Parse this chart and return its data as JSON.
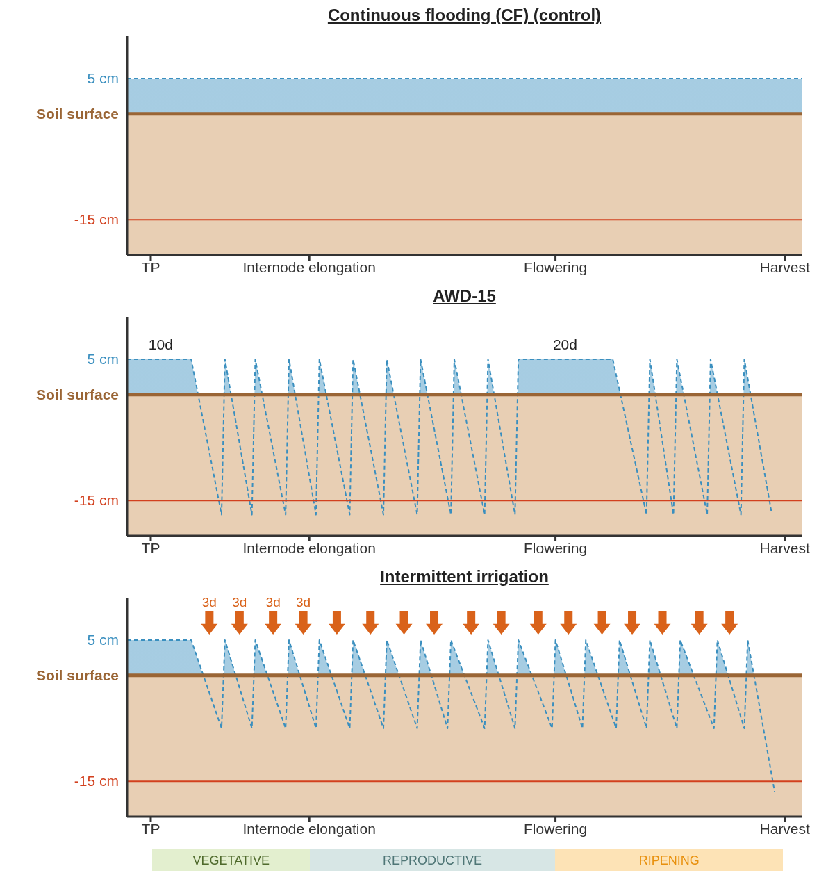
{
  "chart_data": [
    {
      "type": "area",
      "title": "Continuous flooding (CF) (control)",
      "line_style": "dashed",
      "categories": [
        null,
        null,
        null,
        null,
        null,
        null,
        null,
        "TP",
        null,
        null,
        null,
        null,
        null,
        null,
        null,
        null,
        null,
        null,
        null,
        null,
        null,
        null,
        null,
        null,
        null,
        null,
        null,
        null,
        null,
        null,
        null,
        null,
        null,
        null,
        null,
        null,
        null,
        null,
        null,
        null,
        null,
        null,
        null,
        null,
        null,
        null,
        null,
        null,
        null,
        null,
        null,
        null,
        null,
        null,
        "Internode elongation",
        null,
        null,
        null,
        null,
        null,
        null,
        null,
        null,
        null,
        null,
        null,
        null,
        null,
        null,
        null,
        null,
        null,
        null,
        null,
        null,
        null,
        null,
        null,
        null,
        null,
        null,
        null,
        null,
        null,
        null,
        null,
        null,
        null,
        null,
        null,
        null,
        null,
        null,
        null,
        null,
        null,
        null,
        null,
        null,
        null,
        null,
        null,
        null,
        null,
        null,
        null,
        null,
        null,
        null,
        null,
        null,
        null,
        null,
        null,
        null,
        null,
        null,
        null,
        null,
        null,
        null,
        null,
        null,
        null,
        null,
        null,
        null,
        "Flowering",
        null,
        null,
        null,
        null,
        null,
        null,
        null,
        null,
        null,
        null,
        null,
        null,
        null,
        null,
        null,
        null,
        null,
        null,
        null,
        null,
        null,
        null,
        null,
        null,
        null,
        null,
        null,
        null,
        null,
        null,
        null,
        null,
        null,
        null,
        null,
        null,
        null,
        null,
        null,
        null,
        null,
        null,
        null,
        null,
        null,
        null,
        null,
        null,
        null,
        null,
        null,
        null,
        null,
        null,
        null,
        null,
        null,
        null,
        null,
        null,
        null,
        null,
        null,
        null,
        null,
        null,
        null,
        "Harvest",
        null,
        null,
        null,
        null,
        null
      ],
      "series": [
        {
          "color": "#3a8fbf",
          "values": [
            5,
            null,
            null,
            null,
            null,
            null,
            null,
            null,
            null,
            null,
            null,
            null,
            null,
            null,
            null,
            null,
            null,
            null,
            null,
            null,
            null,
            null,
            null,
            null,
            null,
            null,
            null,
            null,
            null,
            null,
            null,
            null,
            null,
            null,
            null,
            null,
            null,
            null,
            null,
            null,
            null,
            null,
            null,
            null,
            null,
            null,
            null,
            null,
            null,
            null,
            null,
            null,
            null,
            null,
            null,
            null,
            null,
            null,
            null,
            null,
            null,
            null,
            null,
            null,
            null,
            null,
            null,
            null,
            null,
            null,
            null,
            null,
            null,
            null,
            null,
            null,
            null,
            null,
            null,
            null,
            null,
            null,
            null,
            null,
            null,
            null,
            null,
            null,
            null,
            null,
            null,
            null,
            null,
            null,
            null,
            null,
            null,
            null,
            null,
            null,
            null,
            null,
            null,
            null,
            null,
            null,
            null,
            null,
            null,
            null,
            null,
            null,
            null,
            null,
            null,
            null,
            null,
            null,
            null,
            null,
            null,
            null,
            null,
            null,
            null,
            null,
            null,
            null,
            null,
            null,
            null,
            null,
            null,
            null,
            null,
            null,
            null,
            null,
            null,
            null,
            null,
            null,
            null,
            null,
            null,
            null,
            null,
            null,
            null,
            null,
            null,
            null,
            null,
            null,
            null,
            null,
            null,
            null,
            null,
            null,
            null,
            null,
            null,
            null,
            null,
            null,
            null,
            null,
            null,
            null,
            null,
            null,
            null,
            null,
            null,
            null,
            null,
            null,
            null,
            null,
            null,
            null,
            null,
            null,
            null,
            null,
            null,
            null,
            null,
            null,
            null,
            null,
            null,
            null,
            null,
            null,
            null,
            null,
            null,
            null,
            5
          ]
        }
      ],
      "ylim": [
        -20,
        11
      ],
      "yticks": [
        {
          "value": 5,
          "label": "5 cm"
        },
        {
          "value": 0,
          "label": "Soil surface"
        },
        {
          "value": -15,
          "label": "-15 cm"
        }
      ],
      "ref_lines": [
        {
          "axis": "y",
          "value": 0,
          "color": "#9a6535"
        },
        {
          "axis": "y",
          "value": -15,
          "color": "#d2401e"
        }
      ],
      "bands": [
        {
          "axis": "y",
          "from": -20,
          "to": 0,
          "color": "#e8cfb4"
        }
      ]
    },
    {
      "type": "area",
      "title": "AWD-15",
      "line_style": "dashed",
      "categories": [
        null,
        null,
        null,
        null,
        null,
        null,
        null,
        "TP",
        null,
        null,
        null,
        null,
        null,
        null,
        null,
        null,
        null,
        null,
        null,
        null,
        null,
        null,
        null,
        null,
        null,
        null,
        null,
        null,
        null,
        null,
        null,
        null,
        null,
        null,
        null,
        null,
        null,
        null,
        null,
        null,
        null,
        null,
        null,
        null,
        null,
        null,
        null,
        null,
        null,
        null,
        null,
        null,
        null,
        null,
        "Internode elongation",
        null,
        null,
        null,
        null,
        null,
        null,
        null,
        null,
        null,
        null,
        null,
        null,
        null,
        null,
        null,
        null,
        null,
        null,
        null,
        null,
        null,
        null,
        null,
        null,
        null,
        null,
        null,
        null,
        null,
        null,
        null,
        null,
        null,
        null,
        null,
        null,
        null,
        null,
        null,
        null,
        null,
        null,
        null,
        null,
        null,
        null,
        null,
        null,
        null,
        null,
        null,
        null,
        null,
        null,
        null,
        null,
        null,
        null,
        null,
        null,
        null,
        null,
        null,
        null,
        null,
        null,
        null,
        null,
        null,
        null,
        null,
        null,
        "Flowering",
        null,
        null,
        null,
        null,
        null,
        null,
        null,
        null,
        null,
        null,
        null,
        null,
        null,
        null,
        null,
        null,
        null,
        null,
        null,
        null,
        null,
        null,
        null,
        null,
        null,
        null,
        null,
        null,
        null,
        null,
        null,
        null,
        null,
        null,
        null,
        null,
        null,
        null,
        null,
        null,
        null,
        null,
        null,
        null,
        null,
        null,
        null,
        null,
        null,
        null,
        null,
        null,
        null,
        null,
        null,
        null,
        null,
        null,
        null,
        null,
        null,
        null,
        null,
        null,
        null,
        null,
        null,
        "Harvest",
        null,
        null,
        null,
        null,
        null
      ],
      "series": [
        {
          "color": "#3a8fbf",
          "values": [
            5,
            null,
            null,
            null,
            null,
            null,
            null,
            null,
            null,
            null,
            null,
            null,
            null,
            null,
            null,
            null,
            null,
            null,
            null,
            5,
            null,
            null,
            null,
            null,
            null,
            null,
            null,
            null,
            -17,
            5,
            null,
            null,
            null,
            null,
            null,
            null,
            null,
            -17,
            5,
            null,
            null,
            null,
            null,
            null,
            null,
            null,
            null,
            -17,
            5,
            null,
            null,
            null,
            null,
            null,
            null,
            null,
            -17,
            5,
            null,
            null,
            null,
            null,
            null,
            null,
            null,
            null,
            -17,
            5,
            null,
            null,
            null,
            null,
            null,
            null,
            null,
            null,
            -17,
            5,
            null,
            null,
            null,
            null,
            null,
            null,
            null,
            null,
            -17,
            5,
            null,
            null,
            null,
            null,
            null,
            null,
            null,
            null,
            -17,
            5,
            null,
            null,
            null,
            null,
            null,
            null,
            null,
            null,
            -17,
            5,
            null,
            null,
            null,
            null,
            null,
            null,
            null,
            -17,
            5,
            null,
            null,
            null,
            null,
            null,
            null,
            null,
            null,
            null,
            null,
            null,
            null,
            null,
            null,
            null,
            null,
            null,
            null,
            null,
            null,
            null,
            null,
            null,
            null,
            null,
            null,
            null,
            5,
            null,
            null,
            null,
            null,
            null,
            null,
            null,
            null,
            null,
            -17,
            5,
            null,
            null,
            null,
            null,
            null,
            null,
            -17,
            5,
            null,
            null,
            null,
            null,
            null,
            null,
            null,
            null,
            -17,
            5,
            null,
            null,
            null,
            null,
            null,
            null,
            null,
            null,
            -17,
            5,
            null,
            null,
            null,
            null,
            null,
            null,
            null,
            -16.5,
            null,
            null,
            null,
            null,
            null,
            null,
            null,
            null,
            null
          ]
        }
      ],
      "ylim": [
        -20,
        11
      ],
      "yticks": [
        {
          "value": 5,
          "label": "5 cm"
        },
        {
          "value": 0,
          "label": "Soil surface"
        },
        {
          "value": -15,
          "label": "-15 cm"
        }
      ],
      "ref_lines": [
        {
          "axis": "y",
          "value": 0,
          "color": "#9a6535"
        },
        {
          "axis": "y",
          "value": -15,
          "color": "#d2401e"
        }
      ],
      "bands": [
        {
          "axis": "y",
          "from": -20,
          "to": 0,
          "color": "#e8cfb4"
        }
      ],
      "annotations": [
        "10d",
        "20d"
      ]
    },
    {
      "type": "area",
      "title": "Intermittent irrigation",
      "line_style": "dashed",
      "categories": [
        null,
        null,
        null,
        null,
        null,
        null,
        null,
        "TP",
        null,
        null,
        null,
        null,
        null,
        null,
        null,
        null,
        null,
        null,
        null,
        null,
        null,
        null,
        null,
        null,
        null,
        null,
        null,
        null,
        null,
        null,
        null,
        null,
        null,
        null,
        null,
        null,
        null,
        null,
        null,
        null,
        null,
        null,
        null,
        null,
        null,
        null,
        null,
        null,
        null,
        null,
        null,
        null,
        null,
        null,
        "Internode elongation",
        null,
        null,
        null,
        null,
        null,
        null,
        null,
        null,
        null,
        null,
        null,
        null,
        null,
        null,
        null,
        null,
        null,
        null,
        null,
        null,
        null,
        null,
        null,
        null,
        null,
        null,
        null,
        null,
        null,
        null,
        null,
        null,
        null,
        null,
        null,
        null,
        null,
        null,
        null,
        null,
        null,
        null,
        null,
        null,
        null,
        null,
        null,
        null,
        null,
        null,
        null,
        null,
        null,
        null,
        null,
        null,
        null,
        null,
        null,
        null,
        null,
        null,
        null,
        null,
        null,
        null,
        null,
        null,
        null,
        null,
        null,
        null,
        "Flowering",
        null,
        null,
        null,
        null,
        null,
        null,
        null,
        null,
        null,
        null,
        null,
        null,
        null,
        null,
        null,
        null,
        null,
        null,
        null,
        null,
        null,
        null,
        null,
        null,
        null,
        null,
        null,
        null,
        null,
        null,
        null,
        null,
        null,
        null,
        null,
        null,
        null,
        null,
        null,
        null,
        null,
        null,
        null,
        null,
        null,
        null,
        null,
        null,
        null,
        null,
        null,
        null,
        null,
        null,
        null,
        null,
        null,
        null,
        null,
        null,
        null,
        null,
        null,
        null,
        null,
        null,
        null,
        "Harvest",
        null,
        null,
        null,
        null,
        null
      ],
      "series": [
        {
          "color": "#3a8fbf",
          "values": [
            5,
            null,
            null,
            null,
            null,
            null,
            null,
            null,
            null,
            null,
            null,
            null,
            null,
            null,
            null,
            null,
            null,
            null,
            null,
            5,
            null,
            null,
            null,
            null,
            null,
            null,
            null,
            null,
            -7.5,
            5,
            null,
            null,
            null,
            null,
            null,
            null,
            null,
            -7.5,
            5,
            null,
            null,
            null,
            null,
            null,
            null,
            null,
            null,
            -7.5,
            5,
            null,
            null,
            null,
            null,
            null,
            null,
            null,
            -7.5,
            5,
            null,
            null,
            null,
            null,
            null,
            null,
            null,
            null,
            -7.5,
            5,
            null,
            null,
            null,
            null,
            null,
            null,
            null,
            null,
            -7.5,
            5,
            null,
            null,
            null,
            null,
            null,
            null,
            null,
            null,
            -7.5,
            5,
            null,
            null,
            null,
            null,
            null,
            null,
            null,
            -7.5,
            5,
            null,
            null,
            null,
            null,
            null,
            null,
            null,
            null,
            null,
            -7.5,
            5,
            null,
            null,
            null,
            null,
            null,
            null,
            null,
            -7.5,
            5,
            null,
            null,
            null,
            null,
            null,
            null,
            null,
            null,
            null,
            -7.5,
            5,
            null,
            null,
            null,
            null,
            null,
            null,
            null,
            -7.5,
            5,
            null,
            null,
            null,
            null,
            null,
            null,
            null,
            null,
            -7.5,
            5,
            null,
            null,
            null,
            null,
            null,
            null,
            null,
            -7.5,
            5,
            null,
            null,
            null,
            null,
            null,
            null,
            null,
            -7.5,
            5,
            null,
            null,
            null,
            null,
            null,
            null,
            null,
            null,
            null,
            -7.5,
            5,
            null,
            null,
            null,
            null,
            null,
            null,
            null,
            -7.5,
            5,
            null,
            null,
            null,
            null,
            null,
            null,
            null,
            -16.5,
            null,
            null,
            null,
            null,
            null,
            null,
            null,
            null
          ]
        }
      ],
      "ylim": [
        -20,
        11
      ],
      "yticks": [
        {
          "value": 5,
          "label": "5 cm"
        },
        {
          "value": 0,
          "label": "Soil surface"
        },
        {
          "value": -15,
          "label": "-15 cm"
        }
      ],
      "ref_lines": [
        {
          "axis": "y",
          "value": 0,
          "color": "#9a6535"
        },
        {
          "axis": "y",
          "value": -15,
          "color": "#d2401e"
        }
      ],
      "bands": [
        {
          "axis": "y",
          "from": -20,
          "to": 0,
          "color": "#e8cfb4"
        }
      ],
      "annotations": [
        "3d",
        "3d",
        "3d",
        "3d"
      ]
    },
    {
      "type": "other",
      "annotations": [
        "VEGETATIVE",
        "REPRODUCTIVE",
        "RIPENING"
      ]
    }
  ]
}
